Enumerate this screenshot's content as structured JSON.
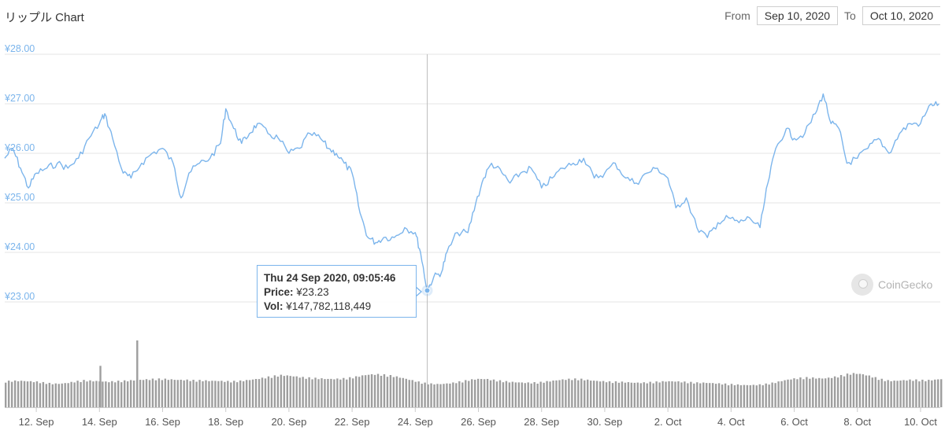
{
  "header": {
    "title": "リップル Chart",
    "from_label": "From",
    "from_date": "Sep 10, 2020",
    "to_label": "To",
    "to_date": "Oct 10, 2020"
  },
  "tooltip": {
    "date": "Thu 24 Sep 2020, 09:05:46",
    "price_label": "Price:",
    "price_value": "¥23.23",
    "vol_label": "Vol:",
    "vol_value": "¥147,782,118,449"
  },
  "brand": {
    "name": "CoinGecko"
  },
  "colors": {
    "line": "#7cb5ec",
    "axis_text": "#7cb5ec",
    "volume": "#9e9e9e",
    "grid": "#e6e6e6"
  },
  "chart_data": {
    "type": "line",
    "y_ticks": [
      "¥28.00",
      "¥27.00",
      "¥26.00",
      "¥25.00",
      "¥24.00",
      "¥23.00"
    ],
    "ylim": [
      23,
      28
    ],
    "x_ticks": [
      "12. Sep",
      "14. Sep",
      "16. Sep",
      "18. Sep",
      "20. Sep",
      "22. Sep",
      "24. Sep",
      "26. Sep",
      "28. Sep",
      "30. Sep",
      "2. Oct",
      "4. Oct",
      "6. Oct",
      "8. Oct",
      "10. Oct"
    ],
    "xlim_days": [
      "2020-09-11",
      "2020-10-10"
    ],
    "grid": true,
    "series": [
      {
        "price": [
          [
            "2020-09-11T00:00",
            25.9
          ],
          [
            "2020-09-11T06:00",
            26.1
          ],
          [
            "2020-09-11T12:00",
            25.7
          ],
          [
            "2020-09-11T18:00",
            25.3
          ],
          [
            "2020-09-12T00:00",
            25.6
          ],
          [
            "2020-09-12T08:00",
            25.7
          ],
          [
            "2020-09-12T16:00",
            25.8
          ],
          [
            "2020-09-13T00:00",
            25.7
          ],
          [
            "2020-09-13T08:00",
            25.9
          ],
          [
            "2020-09-13T16:00",
            26.3
          ],
          [
            "2020-09-14T00:00",
            26.6
          ],
          [
            "2020-09-14T04:00",
            26.8
          ],
          [
            "2020-09-14T10:00",
            26.3
          ],
          [
            "2020-09-14T18:00",
            25.6
          ],
          [
            "2020-09-15T00:00",
            25.5
          ],
          [
            "2020-09-15T08:00",
            25.8
          ],
          [
            "2020-09-15T16:00",
            26.0
          ],
          [
            "2020-09-16T00:00",
            26.1
          ],
          [
            "2020-09-16T08:00",
            25.8
          ],
          [
            "2020-09-16T14:00",
            25.1
          ],
          [
            "2020-09-16T20:00",
            25.6
          ],
          [
            "2020-09-17T04:00",
            25.8
          ],
          [
            "2020-09-17T12:00",
            25.9
          ],
          [
            "2020-09-17T20:00",
            26.2
          ],
          [
            "2020-09-18T00:00",
            26.9
          ],
          [
            "2020-09-18T06:00",
            26.5
          ],
          [
            "2020-09-18T12:00",
            26.2
          ],
          [
            "2020-09-18T18:00",
            26.4
          ],
          [
            "2020-09-19T00:00",
            26.6
          ],
          [
            "2020-09-19T08:00",
            26.4
          ],
          [
            "2020-09-19T16:00",
            26.3
          ],
          [
            "2020-09-20T00:00",
            26.0
          ],
          [
            "2020-09-20T08:00",
            26.1
          ],
          [
            "2020-09-20T16:00",
            26.4
          ],
          [
            "2020-09-21T00:00",
            26.3
          ],
          [
            "2020-09-21T06:00",
            26.1
          ],
          [
            "2020-09-21T12:00",
            26.0
          ],
          [
            "2020-09-21T18:00",
            25.8
          ],
          [
            "2020-09-22T00:00",
            25.6
          ],
          [
            "2020-09-22T06:00",
            24.8
          ],
          [
            "2020-09-22T12:00",
            24.3
          ],
          [
            "2020-09-22T18:00",
            24.2
          ],
          [
            "2020-09-23T00:00",
            24.3
          ],
          [
            "2020-09-23T08:00",
            24.3
          ],
          [
            "2020-09-23T16:00",
            24.5
          ],
          [
            "2020-09-24T00:00",
            24.4
          ],
          [
            "2020-09-24T04:00",
            24.0
          ],
          [
            "2020-09-24T09:05",
            23.23
          ],
          [
            "2020-09-24T14:00",
            23.5
          ],
          [
            "2020-09-24T20:00",
            23.6
          ],
          [
            "2020-09-25T00:00",
            24.0
          ],
          [
            "2020-09-25T08:00",
            24.4
          ],
          [
            "2020-09-25T16:00",
            24.4
          ],
          [
            "2020-09-25T22:00",
            25.0
          ],
          [
            "2020-09-26T04:00",
            25.5
          ],
          [
            "2020-09-26T10:00",
            25.8
          ],
          [
            "2020-09-26T18:00",
            25.6
          ],
          [
            "2020-09-27T00:00",
            25.4
          ],
          [
            "2020-09-27T08:00",
            25.6
          ],
          [
            "2020-09-27T16:00",
            25.7
          ],
          [
            "2020-09-28T00:00",
            25.3
          ],
          [
            "2020-09-28T08:00",
            25.5
          ],
          [
            "2020-09-28T16:00",
            25.7
          ],
          [
            "2020-09-29T00:00",
            25.8
          ],
          [
            "2020-09-29T08:00",
            25.9
          ],
          [
            "2020-09-29T16:00",
            25.5
          ],
          [
            "2020-09-30T00:00",
            25.6
          ],
          [
            "2020-09-30T08:00",
            25.8
          ],
          [
            "2020-09-30T16:00",
            25.5
          ],
          [
            "2020-10-01T00:00",
            25.4
          ],
          [
            "2020-10-01T08:00",
            25.6
          ],
          [
            "2020-10-01T16:00",
            25.7
          ],
          [
            "2020-10-02T00:00",
            25.5
          ],
          [
            "2020-10-02T06:00",
            24.9
          ],
          [
            "2020-10-02T14:00",
            25.1
          ],
          [
            "2020-10-02T22:00",
            24.5
          ],
          [
            "2020-10-03T06:00",
            24.3
          ],
          [
            "2020-10-03T14:00",
            24.6
          ],
          [
            "2020-10-03T22:00",
            24.7
          ],
          [
            "2020-10-04T06:00",
            24.6
          ],
          [
            "2020-10-04T14:00",
            24.7
          ],
          [
            "2020-10-04T22:00",
            24.5
          ],
          [
            "2020-10-05T04:00",
            25.4
          ],
          [
            "2020-10-05T10:00",
            26.1
          ],
          [
            "2020-10-05T18:00",
            26.5
          ],
          [
            "2020-10-06T00:00",
            26.3
          ],
          [
            "2020-10-06T08:00",
            26.4
          ],
          [
            "2020-10-06T16:00",
            26.8
          ],
          [
            "2020-10-06T22:00",
            27.2
          ],
          [
            "2020-10-07T04:00",
            26.6
          ],
          [
            "2020-10-07T10:00",
            26.5
          ],
          [
            "2020-10-07T16:00",
            25.8
          ],
          [
            "2020-10-08T00:00",
            25.9
          ],
          [
            "2020-10-08T08:00",
            26.1
          ],
          [
            "2020-10-08T16:00",
            26.3
          ],
          [
            "2020-10-09T00:00",
            26.0
          ],
          [
            "2020-10-09T08:00",
            26.4
          ],
          [
            "2020-10-09T16:00",
            26.6
          ],
          [
            "2020-10-10T00:00",
            26.6
          ],
          [
            "2020-10-10T08:00",
            27.0
          ],
          [
            "2020-10-10T14:00",
            27.0
          ]
        ],
        "volume_relative": [
          0.55,
          0.56,
          0.56,
          0.55,
          0.54,
          0.52,
          0.5,
          0.5,
          0.52,
          0.55,
          0.57,
          0.56,
          0.55,
          0.54,
          0.55,
          0.56,
          0.57,
          0.58,
          0.59,
          0.6,
          0.6,
          0.59,
          0.58,
          0.58,
          0.57,
          0.57,
          0.56,
          0.56,
          0.55,
          0.55,
          0.56,
          0.58,
          0.6,
          0.63,
          0.66,
          0.68,
          0.67,
          0.65,
          0.63,
          0.62,
          0.61,
          0.6,
          0.6,
          0.61,
          0.63,
          0.66,
          0.69,
          0.7,
          0.69,
          0.67,
          0.64,
          0.6,
          0.56,
          0.52,
          0.5,
          0.49,
          0.5,
          0.52,
          0.55,
          0.58,
          0.6,
          0.6,
          0.58,
          0.56,
          0.54,
          0.53,
          0.52,
          0.52,
          0.53,
          0.55,
          0.57,
          0.59,
          0.6,
          0.6,
          0.58,
          0.56,
          0.55,
          0.54,
          0.54,
          0.53,
          0.52,
          0.52,
          0.53,
          0.54,
          0.55,
          0.55,
          0.54,
          0.53,
          0.52,
          0.52,
          0.51,
          0.5,
          0.49,
          0.48,
          0.47,
          0.47,
          0.48,
          0.5,
          0.53,
          0.57,
          0.6,
          0.62,
          0.63,
          0.62,
          0.61,
          0.63,
          0.66,
          0.7,
          0.72,
          0.7,
          0.66,
          0.61,
          0.57,
          0.56,
          0.57,
          0.58,
          0.58,
          0.57,
          0.58,
          0.6
        ],
        "volume_spikes": [
          [
            "2020-09-15T04:00",
            1.0
          ],
          [
            "2020-09-14T00:00",
            0.62
          ]
        ]
      }
    ]
  }
}
